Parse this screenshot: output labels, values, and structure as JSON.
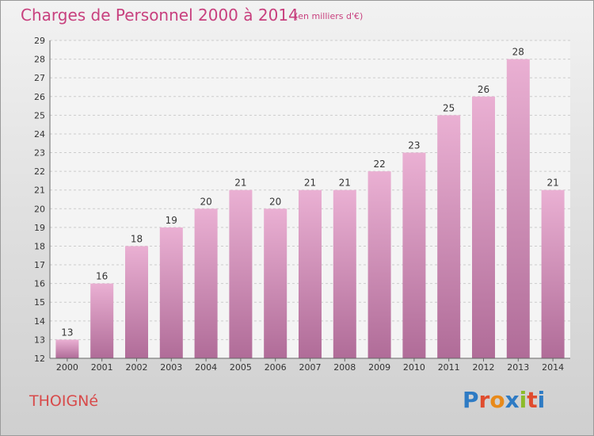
{
  "page": {
    "title": "Charges de Personnel 2000 à 2014",
    "subtitle": "(en milliers d'€)",
    "commune": "THOIGNé",
    "logo_text": "Proxiti"
  },
  "colors": {
    "bar_top": "#eab0d3",
    "bar_bottom": "#b06c98",
    "title": "#c8407e",
    "commune": "#d84a4a",
    "logo_letters": [
      "#2e7bc4",
      "#e04c2e",
      "#e88a1a",
      "#2e7bc4",
      "#8dbb2a",
      "#e04c2e",
      "#2e7bc4"
    ]
  },
  "chart_data": {
    "type": "bar",
    "title": "Charges de Personnel 2000 à 2014",
    "subtitle": "(en milliers d'€)",
    "xlabel": "",
    "ylabel": "",
    "categories": [
      "2000",
      "2001",
      "2002",
      "2003",
      "2004",
      "2005",
      "2006",
      "2007",
      "2008",
      "2009",
      "2010",
      "2011",
      "2012",
      "2013",
      "2014"
    ],
    "values": [
      13,
      16,
      18,
      19,
      20,
      21,
      20,
      21,
      21,
      22,
      23,
      25,
      26,
      28,
      21
    ],
    "ylim": [
      12,
      29
    ],
    "yticks": [
      12,
      13,
      14,
      15,
      16,
      17,
      18,
      19,
      20,
      21,
      22,
      23,
      24,
      25,
      26,
      27,
      28,
      29
    ],
    "grid": true,
    "data_labels": true
  }
}
